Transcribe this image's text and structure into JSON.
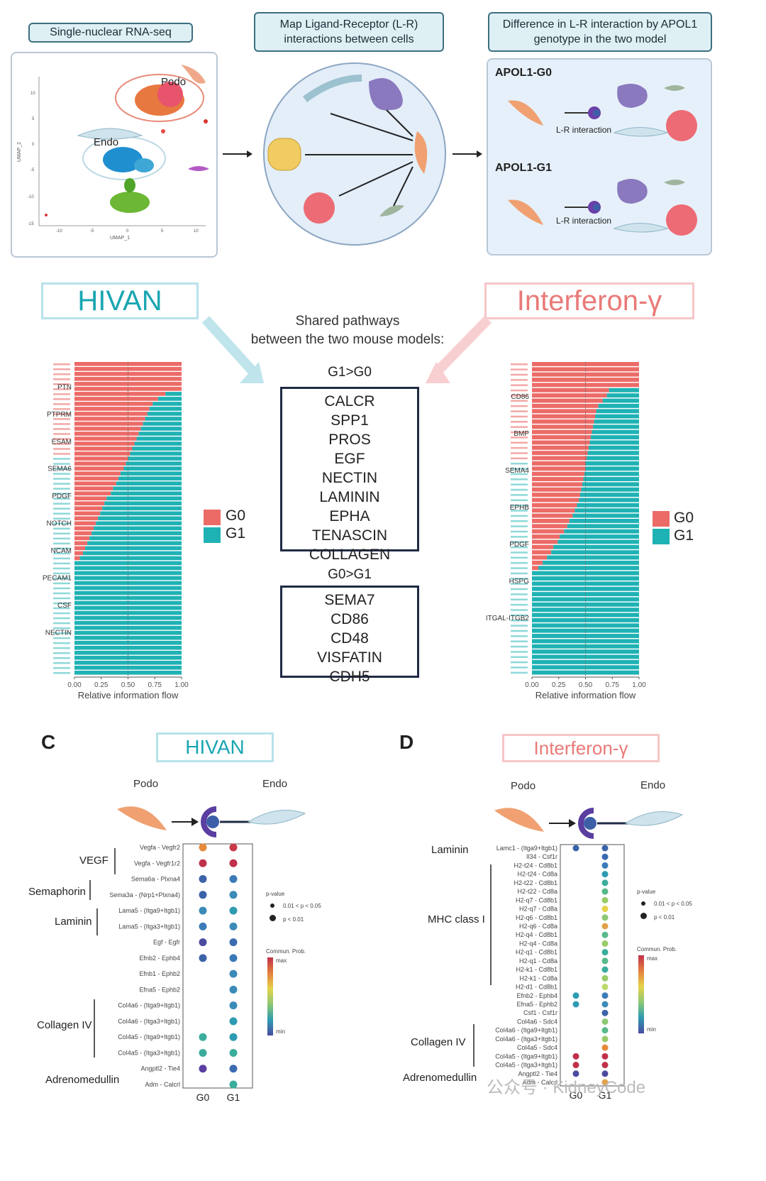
{
  "top_headers": {
    "snrna": "Single-nuclear RNA-seq",
    "map_lr": "Map Ligand-Receptor (L-R) interactions between cells",
    "difference": "Difference in L-R interaction by APOL1 genotype in the two model"
  },
  "umap": {
    "xlabel": "UMAP_1",
    "ylabel": "UMAP_2",
    "xticks": [
      "-10",
      "-5",
      "0",
      "5",
      "10"
    ],
    "yticks": [
      "10",
      "5",
      "0",
      "-5",
      "-10",
      "-15"
    ],
    "podo_label": "Podo",
    "endo_label": "Endo"
  },
  "genotype_panel": {
    "g0_title": "APOL1-G0",
    "g1_title": "APOL1-G1",
    "lr_label": "L-R interaction"
  },
  "models": {
    "hivan": "HIVAN",
    "ifng": "Interferon-γ"
  },
  "shared": {
    "title_line1": "Shared pathways",
    "title_line2": "between the two mouse models:",
    "g1_gt_g0_title": "G1>G0",
    "g1_gt_g0": [
      "CALCR",
      "SPP1",
      "PROS",
      "EGF",
      "NECTIN",
      "LAMININ",
      "EPHA",
      "TENASCIN",
      "COLLAGEN"
    ],
    "g0_gt_g1_title": "G0>G1",
    "g0_gt_g1": [
      "SEMA7",
      "CD86",
      "CD48",
      "VISFATIN",
      "CDH5"
    ]
  },
  "legend": {
    "g0": "G0",
    "g1": "G1",
    "g0_color": "#ec6b67",
    "g1_color": "#1fb2b4"
  },
  "chart_data": [
    {
      "type": "bar",
      "orientation": "horizontal-stacked",
      "title": "HIVAN",
      "xlabel": "Relative information flow",
      "xticks": [
        "0.00",
        "0.25",
        "0.50",
        "0.75",
        "1.00"
      ],
      "xlim": [
        0,
        1
      ],
      "series": [
        {
          "name": "G0",
          "color": "#ec6b67"
        },
        {
          "name": "G1",
          "color": "#1fb2b4"
        }
      ],
      "readable_labels": [
        "PTN",
        "PTPRM",
        "ESAM",
        "SEMA6",
        "PDGF",
        "NOTCH",
        "NCAM",
        "PECAM1",
        "CSF",
        "NECTIN"
      ],
      "g0_share": [
        1,
        1,
        1,
        1,
        1,
        1,
        0.85,
        0.78,
        0.73,
        0.7,
        0.68,
        0.66,
        0.64,
        0.62,
        0.6,
        0.58,
        0.56,
        0.54,
        0.52,
        0.5,
        0.48,
        0.46,
        0.43,
        0.41,
        0.39,
        0.36,
        0.34,
        0.3,
        0.28,
        0.26,
        0.24,
        0.22,
        0.2,
        0.18,
        0.16,
        0.14,
        0.12,
        0.1,
        0.08,
        0.05,
        0,
        0,
        0,
        0,
        0,
        0,
        0,
        0,
        0,
        0,
        0,
        0,
        0,
        0,
        0,
        0,
        0,
        0,
        0,
        0,
        0,
        0,
        0
      ]
    },
    {
      "type": "bar",
      "orientation": "horizontal-stacked",
      "title": "Interferon-γ",
      "xlabel": "Relative information flow",
      "xticks": [
        "0.00",
        "0.25",
        "0.50",
        "0.75",
        "1.00"
      ],
      "xlim": [
        0,
        1
      ],
      "series": [
        {
          "name": "G0",
          "color": "#ec6b67"
        },
        {
          "name": "G1",
          "color": "#1fb2b4"
        }
      ],
      "readable_labels": [
        "CD86",
        "BMP",
        "SEMA4",
        "EPHB",
        "PDGF",
        "HSPG",
        "ITGAL-ITGB2"
      ],
      "g0_share": [
        1,
        1,
        1,
        1,
        1,
        0.72,
        0.7,
        0.66,
        0.62,
        0.6,
        0.59,
        0.58,
        0.57,
        0.56,
        0.55,
        0.54,
        0.53,
        0.52,
        0.51,
        0.5,
        0.5,
        0.49,
        0.48,
        0.47,
        0.46,
        0.45,
        0.44,
        0.42,
        0.4,
        0.38,
        0.35,
        0.33,
        0.3,
        0.26,
        0.24,
        0.2,
        0.18,
        0.14,
        0.1,
        0.06,
        0,
        0,
        0,
        0,
        0,
        0,
        0,
        0,
        0,
        0,
        0,
        0,
        0,
        0,
        0,
        0,
        0,
        0,
        0,
        0
      ]
    }
  ],
  "panel_c": {
    "letter": "C",
    "title": "HIVAN",
    "sender": "Podo",
    "receiver": "Endo",
    "xcats": [
      "G0",
      "G1"
    ],
    "groups": [
      "VEGF",
      "Semaphorin",
      "Laminin",
      "Collagen IV",
      "Adrenomedullin"
    ],
    "pairs": [
      {
        "label": "Vegfa - Vegfr2",
        "g0": "#e48a3a",
        "g1": "#c83a4a"
      },
      {
        "label": "Vegfa - Vegfr1r2",
        "g0": "#c0304a",
        "g1": "#c0304a"
      },
      {
        "label": "Sema6a - Plxna4",
        "g0": "#3b63a8",
        "g1": "#3b7ab8"
      },
      {
        "label": "Sema3a - (Nrp1+Plxna4)",
        "g0": "#3b63a8",
        "g1": "#3b8ab8"
      },
      {
        "label": "Lama5 - (Itga9+Itgb1)",
        "g0": "#3b8ab8",
        "g1": "#2e9bb2"
      },
      {
        "label": "Lama5 - (Itga3+Itgb1)",
        "g0": "#3b7ab8",
        "g1": "#3b8ab8"
      },
      {
        "label": "Egf - Egfr",
        "g0": "#4a4aa0",
        "g1": "#3b6ab0"
      },
      {
        "label": "Efnb2 - Ephb4",
        "g0": "#3b63a8",
        "g1": "#3b7ab8"
      },
      {
        "label": "Efnb1 - Ephb2",
        "g0": "",
        "g1": "#3b8ab8"
      },
      {
        "label": "Efna5 - Ephb2",
        "g0": "",
        "g1": "#3b8ab8"
      },
      {
        "label": "Col4a6 - (Itga9+Itgb1)",
        "g0": "",
        "g1": "#3b8ab8"
      },
      {
        "label": "Col4a6 - (Itga3+Itgb1)",
        "g0": "",
        "g1": "#2e9bb2"
      },
      {
        "label": "Col4a5 - (Itga9+Itgb1)",
        "g0": "#3aad9c",
        "g1": "#2e9bb2"
      },
      {
        "label": "Col4a5 - (Itga3+Itgb1)",
        "g0": "#3aad9c",
        "g1": "#3aad9c"
      },
      {
        "label": "Angptl2 - Tie4",
        "g0": "#5a3ea0",
        "g1": "#3b6ab0"
      },
      {
        "label": "Adm - Calcrl",
        "g0": "",
        "g1": "#3aad9c"
      }
    ],
    "pvalue_title": "p-value",
    "pvalue_small": "0.01 < p < 0.05",
    "pvalue_big": "p < 0.01",
    "prob_title": "Commun. Prob.",
    "prob_max": "max",
    "prob_min": "min"
  },
  "panel_d": {
    "letter": "D",
    "title": "Interferon-γ",
    "sender": "Podo",
    "receiver": "Endo",
    "xcats": [
      "G0",
      "G1"
    ],
    "groups": [
      "Laminin",
      "MHC class I",
      "Collagen IV",
      "Adrenomedullin"
    ],
    "pairs": [
      {
        "label": "Lamc1 - (Itga9+Itgb1)",
        "g0": "#3b63a8",
        "g1": "#3b63a8"
      },
      {
        "label": "Il34 - Csf1r",
        "g0": "",
        "g1": "#3b6ab0"
      },
      {
        "label": "H2-t24 - Cd8b1",
        "g0": "",
        "g1": "#3b7ab8"
      },
      {
        "label": "H2-t24 - Cd8a",
        "g0": "",
        "g1": "#2e9bb2"
      },
      {
        "label": "H2-t22 - Cd8b1",
        "g0": "",
        "g1": "#3aad9c"
      },
      {
        "label": "H2-t22 - Cd8a",
        "g0": "",
        "g1": "#58b98a"
      },
      {
        "label": "H2-q7 - Cd8b1",
        "g0": "",
        "g1": "#9acb6a"
      },
      {
        "label": "H2-q7 - Cd8a",
        "g0": "",
        "g1": "#e5d34a"
      },
      {
        "label": "H2-q6 - Cd8b1",
        "g0": "",
        "g1": "#8dc874"
      },
      {
        "label": "H2-q6 - Cd8a",
        "g0": "",
        "g1": "#e2a24a"
      },
      {
        "label": "H2-q4 - Cd8b1",
        "g0": "",
        "g1": "#58b98a"
      },
      {
        "label": "H2-q4 - Cd8a",
        "g0": "",
        "g1": "#9acb6a"
      },
      {
        "label": "H2-q1 - Cd8b1",
        "g0": "",
        "g1": "#3aad9c"
      },
      {
        "label": "H2-q1 - Cd8a",
        "g0": "",
        "g1": "#58b98a"
      },
      {
        "label": "H2-k1 - Cd8b1",
        "g0": "",
        "g1": "#3aad9c"
      },
      {
        "label": "H2-k1 - Cd8a",
        "g0": "",
        "g1": "#9acb6a"
      },
      {
        "label": "H2-d1 - Cd8b1",
        "g0": "",
        "g1": "#bcd96a"
      },
      {
        "label": "Efnb2 - Ephb4",
        "g0": "#2e9bb2",
        "g1": "#3b7ab8"
      },
      {
        "label": "Efna5 - Ephb2",
        "g0": "#2e9bb2",
        "g1": "#3b8ab8"
      },
      {
        "label": "Csf1 - Csf1r",
        "g0": "",
        "g1": "#3b63a8"
      },
      {
        "label": "Col4a6 - Sdc4",
        "g0": "",
        "g1": "#8dc874"
      },
      {
        "label": "Col4a6 - (Itga9+Itgb1)",
        "g0": "",
        "g1": "#58b98a"
      },
      {
        "label": "Col4a6 - (Itga3+Itgb1)",
        "g0": "",
        "g1": "#9acb6a"
      },
      {
        "label": "Col4a5 - Sdc4",
        "g0": "",
        "g1": "#e48a3a"
      },
      {
        "label": "Col4a5 - (Itga9+Itgb1)",
        "g0": "#c0304a",
        "g1": "#c0304a"
      },
      {
        "label": "Col4a5 - (Itga3+Itgb1)",
        "g0": "#c0304a",
        "g1": "#c0304a"
      },
      {
        "label": "Angptl2 - Tie4",
        "g0": "#4a4aa0",
        "g1": "#4a4aa0"
      },
      {
        "label": "Adm - Calcrl",
        "g0": "",
        "g1": "#e2a24a"
      }
    ],
    "pvalue_title": "p-value",
    "pvalue_small": "0.01 < p < 0.05",
    "pvalue_big": "p < 0.01",
    "prob_title": "Commun. Prob.",
    "prob_max": "max",
    "prob_min": "min"
  },
  "watermark": "公众号 · KidneyCode"
}
